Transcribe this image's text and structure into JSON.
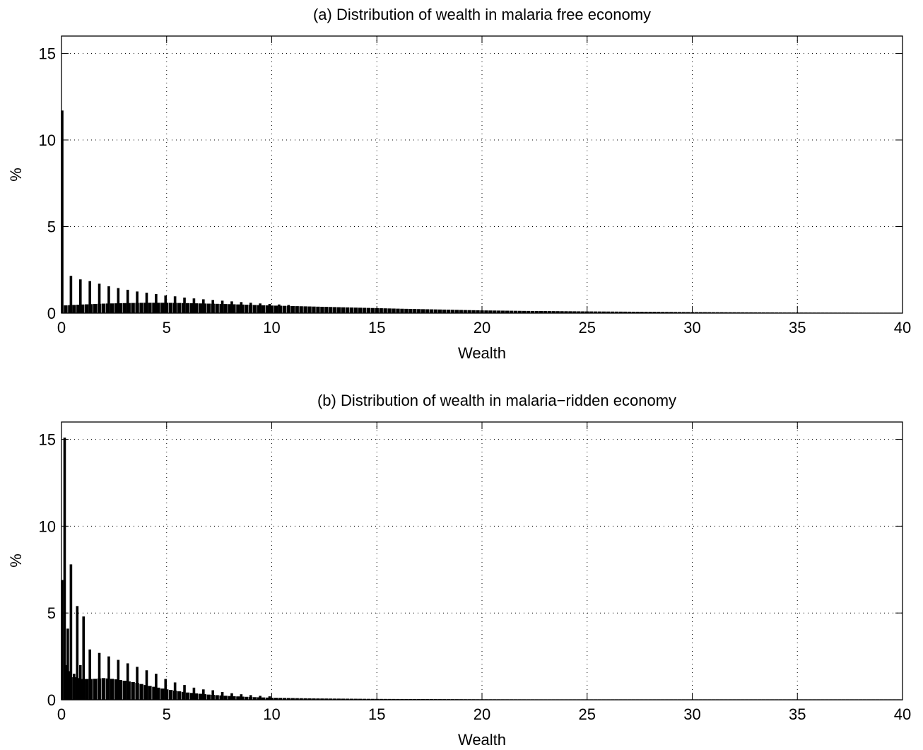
{
  "chart_data": [
    {
      "type": "bar",
      "title": "(a) Distribution of wealth in malaria free economy",
      "xlabel": "Wealth",
      "ylabel": "%",
      "xlim": [
        0,
        40
      ],
      "ylim": [
        0,
        16
      ],
      "xticks": [
        0,
        5,
        10,
        15,
        20,
        25,
        30,
        35,
        40
      ],
      "yticks": [
        0,
        5,
        10,
        15
      ],
      "grid": true,
      "bin_width": 0.2,
      "spikes": [
        {
          "x": 0.0,
          "value": 11.7
        },
        {
          "x": 0.45,
          "value": 2.15
        },
        {
          "x": 0.9,
          "value": 1.95
        },
        {
          "x": 1.35,
          "value": 1.85
        },
        {
          "x": 1.8,
          "value": 1.7
        },
        {
          "x": 2.25,
          "value": 1.55
        },
        {
          "x": 2.7,
          "value": 1.45
        },
        {
          "x": 3.15,
          "value": 1.35
        },
        {
          "x": 3.6,
          "value": 1.25
        },
        {
          "x": 4.05,
          "value": 1.18
        },
        {
          "x": 4.5,
          "value": 1.1
        },
        {
          "x": 4.95,
          "value": 1.02
        },
        {
          "x": 5.4,
          "value": 0.97
        },
        {
          "x": 5.85,
          "value": 0.9
        },
        {
          "x": 6.3,
          "value": 0.85
        },
        {
          "x": 6.75,
          "value": 0.8
        },
        {
          "x": 7.2,
          "value": 0.76
        },
        {
          "x": 7.65,
          "value": 0.72
        },
        {
          "x": 8.1,
          "value": 0.68
        },
        {
          "x": 8.55,
          "value": 0.64
        },
        {
          "x": 9.0,
          "value": 0.6
        },
        {
          "x": 9.45,
          "value": 0.56
        },
        {
          "x": 9.9,
          "value": 0.53
        },
        {
          "x": 10.35,
          "value": 0.5
        },
        {
          "x": 10.8,
          "value": 0.47
        }
      ],
      "baseline": [
        {
          "x": 0.2,
          "value": 0.45
        },
        {
          "x": 1.0,
          "value": 0.5
        },
        {
          "x": 2.0,
          "value": 0.55
        },
        {
          "x": 3.0,
          "value": 0.58
        },
        {
          "x": 4.0,
          "value": 0.6
        },
        {
          "x": 5.0,
          "value": 0.6
        },
        {
          "x": 6.0,
          "value": 0.58
        },
        {
          "x": 7.0,
          "value": 0.55
        },
        {
          "x": 8.0,
          "value": 0.52
        },
        {
          "x": 9.0,
          "value": 0.48
        },
        {
          "x": 10.0,
          "value": 0.44
        },
        {
          "x": 12.0,
          "value": 0.38
        },
        {
          "x": 14.0,
          "value": 0.32
        },
        {
          "x": 16.0,
          "value": 0.26
        },
        {
          "x": 18.0,
          "value": 0.21
        },
        {
          "x": 20.0,
          "value": 0.16
        },
        {
          "x": 22.0,
          "value": 0.13
        },
        {
          "x": 25.0,
          "value": 0.1
        },
        {
          "x": 30.0,
          "value": 0.06
        },
        {
          "x": 35.0,
          "value": 0.035
        },
        {
          "x": 40.0,
          "value": 0.02
        }
      ]
    },
    {
      "type": "bar",
      "title": "(b) Distribution of wealth in malaria−ridden economy",
      "xlabel": "Wealth",
      "ylabel": "%",
      "xlim": [
        0,
        40
      ],
      "ylim": [
        0,
        16
      ],
      "xticks": [
        0,
        5,
        10,
        15,
        20,
        25,
        30,
        35,
        40
      ],
      "yticks": [
        0,
        5,
        10,
        15
      ],
      "grid": true,
      "bin_width": 0.2,
      "spikes": [
        {
          "x": 0.0,
          "value": 6.9
        },
        {
          "x": 0.15,
          "value": 15.1
        },
        {
          "x": 0.3,
          "value": 4.1
        },
        {
          "x": 0.45,
          "value": 7.8
        },
        {
          "x": 0.6,
          "value": 1.5
        },
        {
          "x": 0.75,
          "value": 5.4
        },
        {
          "x": 0.9,
          "value": 2.0
        },
        {
          "x": 1.05,
          "value": 4.8
        },
        {
          "x": 1.35,
          "value": 2.9
        },
        {
          "x": 1.8,
          "value": 2.7
        },
        {
          "x": 2.25,
          "value": 2.5
        },
        {
          "x": 2.7,
          "value": 2.3
        },
        {
          "x": 3.15,
          "value": 2.1
        },
        {
          "x": 3.6,
          "value": 1.9
        },
        {
          "x": 4.05,
          "value": 1.7
        },
        {
          "x": 4.5,
          "value": 1.5
        },
        {
          "x": 4.95,
          "value": 1.2
        },
        {
          "x": 5.4,
          "value": 1.0
        },
        {
          "x": 5.85,
          "value": 0.85
        },
        {
          "x": 6.3,
          "value": 0.7
        },
        {
          "x": 6.75,
          "value": 0.6
        },
        {
          "x": 7.2,
          "value": 0.55
        },
        {
          "x": 7.65,
          "value": 0.45
        },
        {
          "x": 8.1,
          "value": 0.38
        },
        {
          "x": 8.55,
          "value": 0.32
        },
        {
          "x": 9.0,
          "value": 0.27
        },
        {
          "x": 9.45,
          "value": 0.23
        },
        {
          "x": 9.9,
          "value": 0.2
        }
      ],
      "baseline": [
        {
          "x": 0.2,
          "value": 2.0
        },
        {
          "x": 0.6,
          "value": 1.3
        },
        {
          "x": 1.0,
          "value": 1.2
        },
        {
          "x": 1.5,
          "value": 1.2
        },
        {
          "x": 2.0,
          "value": 1.25
        },
        {
          "x": 2.5,
          "value": 1.2
        },
        {
          "x": 3.0,
          "value": 1.1
        },
        {
          "x": 3.5,
          "value": 1.0
        },
        {
          "x": 4.0,
          "value": 0.85
        },
        {
          "x": 5.0,
          "value": 0.6
        },
        {
          "x": 6.0,
          "value": 0.42
        },
        {
          "x": 7.0,
          "value": 0.3
        },
        {
          "x": 8.0,
          "value": 0.22
        },
        {
          "x": 9.0,
          "value": 0.16
        },
        {
          "x": 10.0,
          "value": 0.12
        },
        {
          "x": 12.0,
          "value": 0.08
        },
        {
          "x": 15.0,
          "value": 0.05
        },
        {
          "x": 20.0,
          "value": 0.03
        },
        {
          "x": 25.0,
          "value": 0.02
        },
        {
          "x": 30.0,
          "value": 0.015
        },
        {
          "x": 40.0,
          "value": 0.01
        }
      ]
    }
  ]
}
